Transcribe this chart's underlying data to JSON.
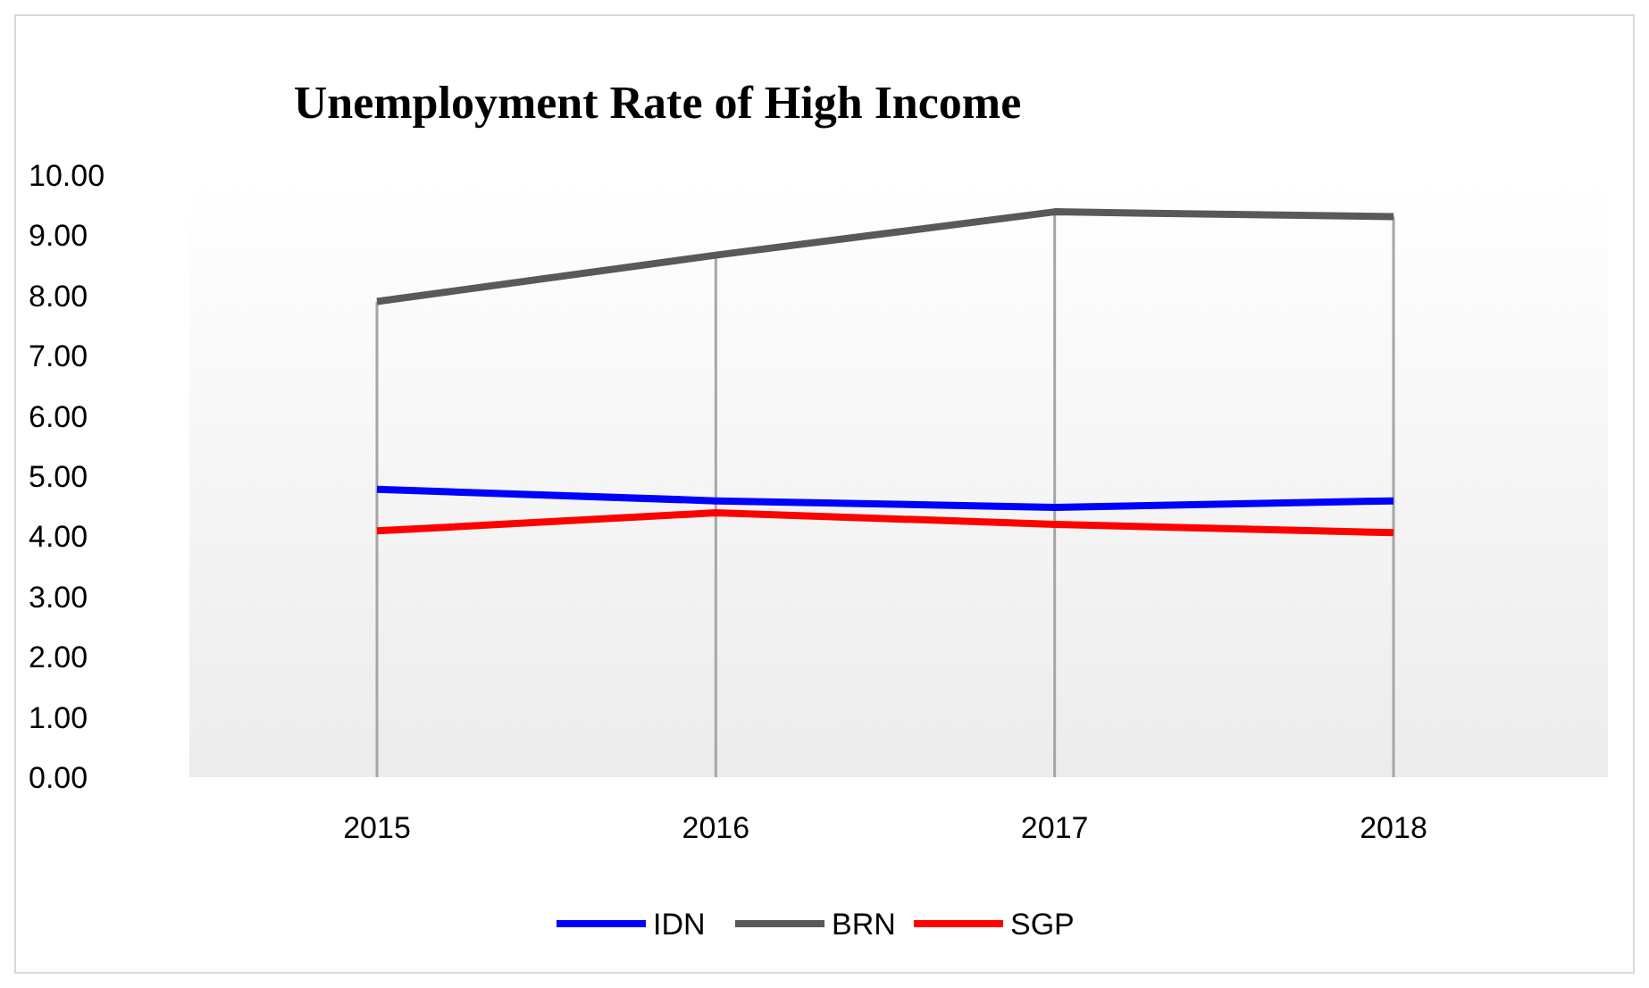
{
  "chart_data": {
    "type": "line",
    "title": "Unemployment Rate of High Income",
    "categories": [
      "2015",
      "2016",
      "2017",
      "2018"
    ],
    "series": [
      {
        "name": "IDN",
        "color": "#0000ff",
        "values": [
          4.78,
          4.59,
          4.48,
          4.59
        ]
      },
      {
        "name": "BRN",
        "color": "#595959",
        "values": [
          7.9,
          8.67,
          9.39,
          9.31
        ]
      },
      {
        "name": "SGP",
        "color": "#ff0000",
        "values": [
          4.09,
          4.39,
          4.2,
          4.06
        ]
      }
    ],
    "ylim": [
      0,
      10
    ],
    "yticks": [
      {
        "value": 0,
        "label": "0.00"
      },
      {
        "value": 1,
        "label": "1.00"
      },
      {
        "value": 2,
        "label": "2.00"
      },
      {
        "value": 3,
        "label": "3.00"
      },
      {
        "value": 4,
        "label": "4.00"
      },
      {
        "value": 5,
        "label": "5.00"
      },
      {
        "value": 6,
        "label": "6.00"
      },
      {
        "value": 7,
        "label": "7.00"
      },
      {
        "value": 8,
        "label": "8.00"
      },
      {
        "value": 9,
        "label": "9.00"
      },
      {
        "value": 10,
        "label": "10.00"
      }
    ],
    "grid": "x",
    "legend": "bottom",
    "marker": "none",
    "line_style": "solid"
  }
}
